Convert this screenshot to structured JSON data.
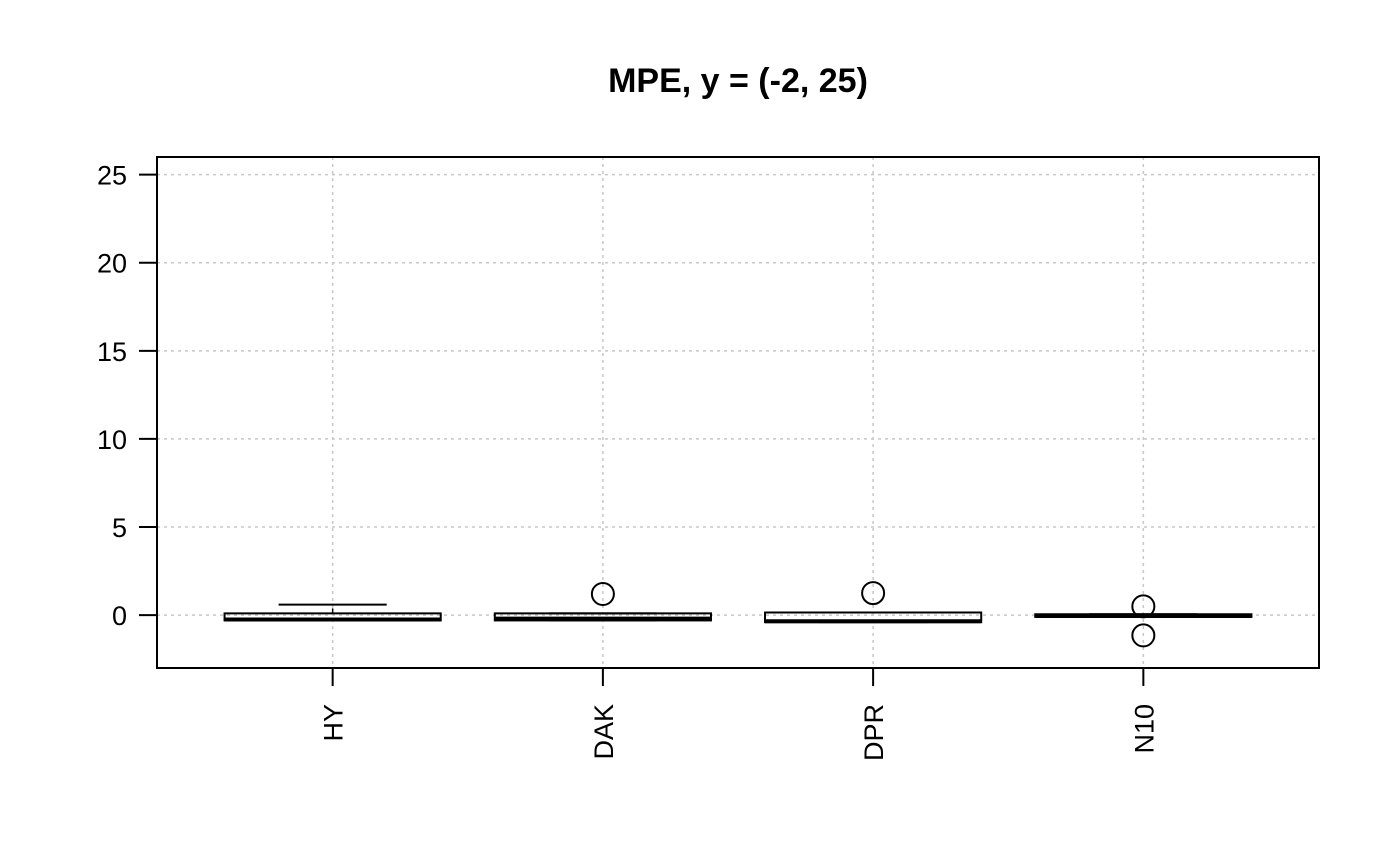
{
  "chart_data": {
    "type": "boxplot",
    "title": "MPE, y = (-2, 25)",
    "xlabel": "",
    "ylabel": "",
    "ylim": [
      -3,
      26
    ],
    "yticks": [
      0,
      5,
      10,
      15,
      20,
      25
    ],
    "ytick_labels": [
      "0",
      "5",
      "10",
      "15",
      "20",
      "25"
    ],
    "grid": true,
    "categories": [
      "HY",
      "DAK",
      "DPR",
      "N10"
    ],
    "boxes": [
      {
        "name": "HY",
        "whisker_low": -0.3,
        "q1": -0.3,
        "median": -0.25,
        "q3": 0.1,
        "whisker_high": 0.6,
        "outliers": []
      },
      {
        "name": "DAK",
        "whisker_low": -0.3,
        "q1": -0.3,
        "median": -0.2,
        "q3": 0.1,
        "whisker_high": 0.1,
        "outliers": [
          1.2
        ]
      },
      {
        "name": "DPR",
        "whisker_low": -0.4,
        "q1": -0.4,
        "median": -0.35,
        "q3": 0.15,
        "whisker_high": 0.15,
        "outliers": [
          1.25
        ]
      },
      {
        "name": "N10",
        "whisker_low": -0.1,
        "q1": -0.1,
        "median": -0.05,
        "q3": 0.05,
        "whisker_high": 0.05,
        "outliers": [
          0.5,
          -1.15
        ]
      }
    ]
  }
}
